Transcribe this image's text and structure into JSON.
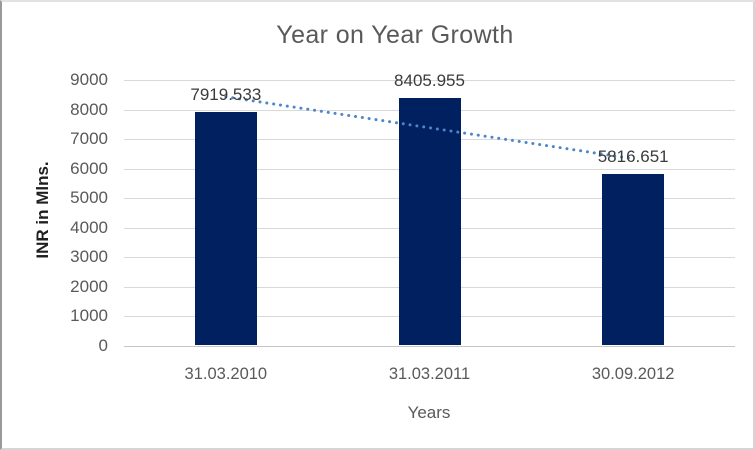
{
  "chart_data": {
    "type": "bar",
    "title": "Year on Year Growth",
    "xlabel": "Years",
    "ylabel": "INR in Mlns.",
    "categories": [
      "31.03.2010",
      "31.03.2011",
      "30.09.2012"
    ],
    "values": [
      7919.533,
      8405.955,
      5816.651
    ],
    "value_label_decimals": 3,
    "ylim": [
      0,
      9000
    ],
    "yticks": [
      0,
      1000,
      2000,
      3000,
      4000,
      5000,
      6000,
      7000,
      8000,
      9000
    ],
    "grid": true,
    "legend_position": "none",
    "trendline": {
      "present": true,
      "fit": "linear",
      "style": "dotted"
    },
    "colors": {
      "bar": "#002060",
      "trendline": "#4a86c8",
      "gridline": "#d9d9d9",
      "axis_text": "#595959",
      "data_label_text": "#3b3b3b",
      "title_text": "#595959"
    }
  }
}
